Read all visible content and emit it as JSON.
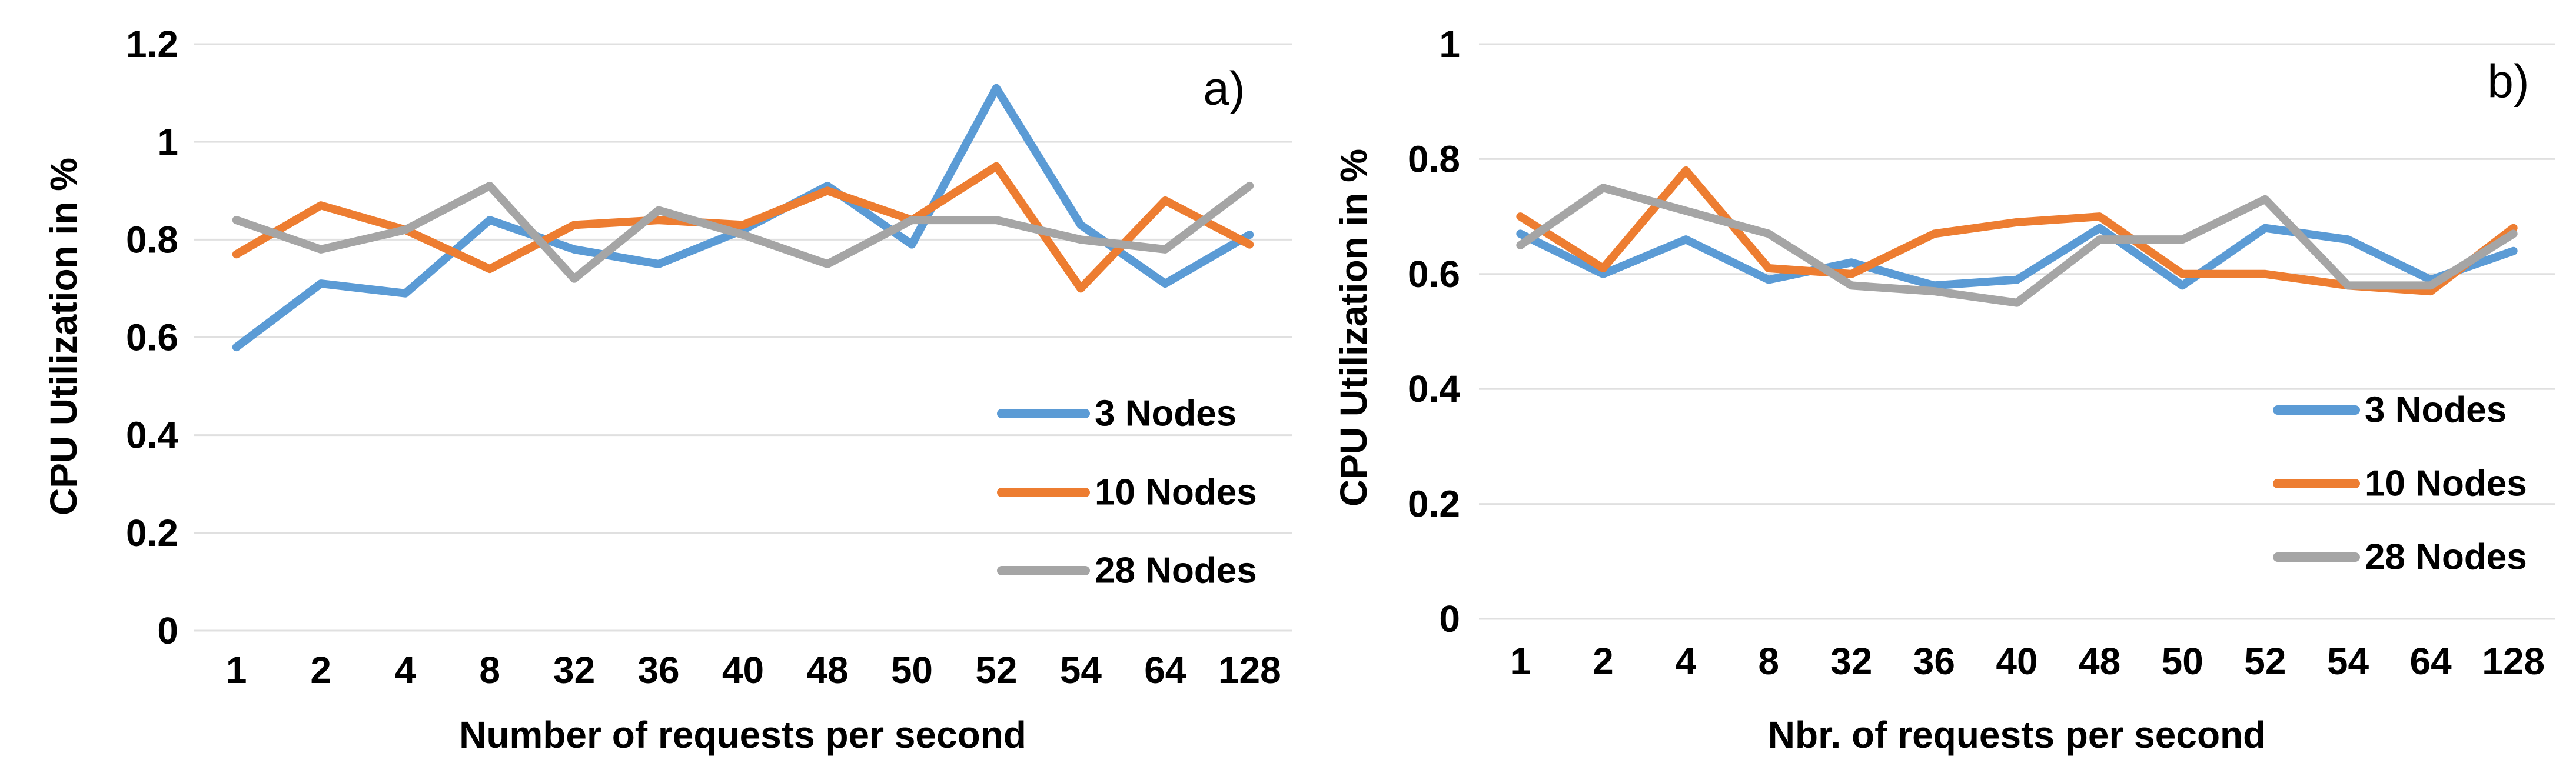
{
  "page": {
    "background": "#ffffff",
    "gridline_color": "#e0e0e0",
    "text_color": "#000000"
  },
  "chart_data": [
    {
      "type": "line",
      "panel": "a",
      "annotation": "a)",
      "title": "",
      "xlabel": "Number of requests per second",
      "ylabel": "CPU Utilization in %",
      "categories": [
        "1",
        "2",
        "4",
        "8",
        "32",
        "36",
        "40",
        "48",
        "50",
        "52",
        "54",
        "64",
        "128"
      ],
      "ylim": [
        0,
        1.2
      ],
      "ytick_labels": [
        "0",
        "0.2",
        "0.4",
        "0.6",
        "0.8",
        "1",
        "1.2"
      ],
      "grid": true,
      "legend_position": "inside-right",
      "legend_entries": [
        "3 Nodes",
        "10 Nodes",
        "28 Nodes"
      ],
      "series": [
        {
          "name": "3 Nodes",
          "color": "#5B9BD5",
          "values": [
            0.58,
            0.71,
            0.69,
            0.84,
            0.78,
            0.75,
            0.82,
            0.91,
            0.79,
            1.11,
            0.83,
            0.71,
            0.81
          ]
        },
        {
          "name": "10 Nodes",
          "color": "#ED7D31",
          "values": [
            0.77,
            0.87,
            0.82,
            0.74,
            0.83,
            0.84,
            0.83,
            0.9,
            0.84,
            0.95,
            0.7,
            0.88,
            0.79
          ]
        },
        {
          "name": "28 Nodes",
          "color": "#A5A5A5",
          "values": [
            0.84,
            0.78,
            0.82,
            0.91,
            0.72,
            0.86,
            0.81,
            0.75,
            0.84,
            0.84,
            0.8,
            0.78,
            0.91
          ]
        }
      ]
    },
    {
      "type": "line",
      "panel": "b",
      "annotation": "b)",
      "title": "",
      "xlabel": "Nbr. of requests per second",
      "ylabel": "CPU Utilization in %",
      "categories": [
        "1",
        "2",
        "4",
        "8",
        "32",
        "36",
        "40",
        "48",
        "50",
        "52",
        "54",
        "64",
        "128"
      ],
      "ylim": [
        0,
        1
      ],
      "ytick_labels": [
        "0",
        "0.2",
        "0.4",
        "0.6",
        "0.8",
        "1"
      ],
      "grid": true,
      "legend_position": "inside-right",
      "legend_entries": [
        "3 Nodes",
        "10 Nodes",
        "28 Nodes"
      ],
      "series": [
        {
          "name": "3 Nodes",
          "color": "#5B9BD5",
          "values": [
            0.67,
            0.6,
            0.66,
            0.59,
            0.62,
            0.58,
            0.59,
            0.68,
            0.58,
            0.68,
            0.66,
            0.59,
            0.64
          ]
        },
        {
          "name": "10 Nodes",
          "color": "#ED7D31",
          "values": [
            0.7,
            0.61,
            0.78,
            0.61,
            0.6,
            0.67,
            0.69,
            0.7,
            0.6,
            0.6,
            0.58,
            0.57,
            0.68
          ]
        },
        {
          "name": "28 Nodes",
          "color": "#A5A5A5",
          "values": [
            0.65,
            0.75,
            0.71,
            0.67,
            0.58,
            0.57,
            0.55,
            0.66,
            0.66,
            0.73,
            0.58,
            0.58,
            0.67
          ]
        }
      ]
    }
  ]
}
